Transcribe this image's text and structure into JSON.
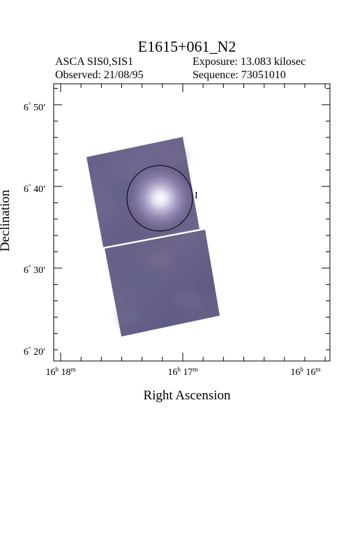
{
  "title": "E1615+061_N2",
  "mission": {
    "label": "ASCA",
    "value": "SIS0,SIS1"
  },
  "observed": {
    "label": "Observed:",
    "value": "21/08/95"
  },
  "exposure": {
    "label": "Exposure:",
    "value": "13.083 kilosec"
  },
  "sequence": {
    "label": "Sequence:",
    "value": "73051010"
  },
  "axes": {
    "x_title": "Right Ascension",
    "y_title": "Declination",
    "dec_ticks": [
      {
        "deg": "6",
        "min": "50"
      },
      {
        "deg": "6",
        "min": "40"
      },
      {
        "deg": "6",
        "min": "30"
      },
      {
        "deg": "6",
        "min": "20"
      }
    ],
    "ra_ticks": [
      {
        "h": "16",
        "m": "18"
      },
      {
        "h": "16",
        "m": "17"
      },
      {
        "h": "16",
        "m": "16"
      }
    ]
  },
  "colors": {
    "image_fill": "#6b6189",
    "source_glow": "#e6e2f4",
    "frame": "#000000"
  },
  "overlay": {
    "region": "circle",
    "marker_glyph": "I"
  }
}
